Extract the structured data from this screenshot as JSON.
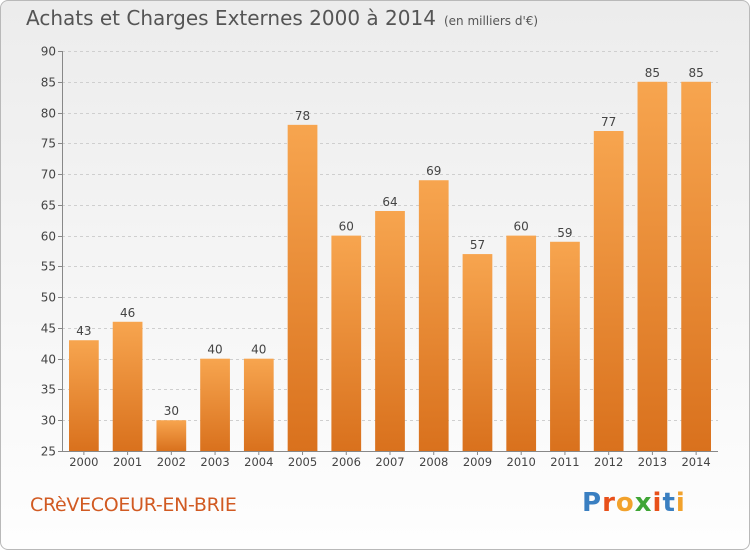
{
  "header": {
    "title": "Achats et Charges Externes 2000 à 2014",
    "unit": "(en milliers d'€)"
  },
  "footer": {
    "commune": "CRèVECOEUR-EN-BRIE",
    "brand": "Proxiti",
    "brand_colors": [
      "#3a7fc1",
      "#e8501a",
      "#f2a22c",
      "#3fa535",
      "#e8501a",
      "#3a7fc1",
      "#f2a22c"
    ]
  },
  "colors": {
    "bar_light": "#f7a54f",
    "bar_dark": "#d9711d",
    "grid": "#cfcfcf",
    "axis_text": "#444444"
  },
  "chart_data": {
    "type": "bar",
    "title": "Achats et Charges Externes 2000 à 2014",
    "subtitle": "(en milliers d'€)",
    "xlabel": "",
    "ylabel": "",
    "categories": [
      "2000",
      "2001",
      "2002",
      "2003",
      "2004",
      "2005",
      "2006",
      "2007",
      "2008",
      "2009",
      "2010",
      "2011",
      "2012",
      "2013",
      "2014"
    ],
    "values": [
      43,
      46,
      30,
      40,
      40,
      78,
      60,
      64,
      69,
      57,
      60,
      59,
      77,
      85,
      85
    ],
    "ylim": [
      25,
      90
    ],
    "yticks": [
      25,
      30,
      35,
      40,
      45,
      50,
      55,
      60,
      65,
      70,
      75,
      80,
      85,
      90
    ],
    "grid": true,
    "legend": "none"
  }
}
